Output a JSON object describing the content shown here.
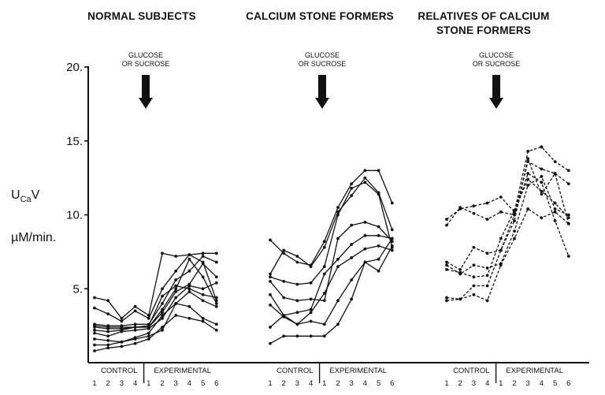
{
  "chart_data": {
    "type": "line",
    "ylabel_main": "U",
    "ylabel_sub": "Ca",
    "ylabel_suffix": "V",
    "ylabel_units": "µM/min.",
    "ylim": [
      0,
      20
    ],
    "yticks": [
      {
        "value": 5,
        "label": "5."
      },
      {
        "value": 10,
        "label": "10."
      },
      {
        "value": 15,
        "label": "15."
      },
      {
        "value": 20,
        "label": "20."
      }
    ],
    "x_positions": [
      1,
      2,
      3,
      4,
      5,
      6,
      7,
      8,
      9,
      10
    ],
    "x_tick_labels": [
      "1",
      "2",
      "3",
      "4",
      "1",
      "2",
      "3",
      "4",
      "5",
      "6"
    ],
    "segment_labels": {
      "control": "CONTROL",
      "experimental": "EXPERIMENTAL"
    },
    "arrow_label_line1": "GLUCOSE",
    "arrow_label_line2": "OR SUCROSE",
    "panels": [
      {
        "title_lines": [
          "NORMAL SUBJECTS"
        ],
        "line_style": "solid",
        "series": [
          {
            "values": [
              4.4,
              4.2,
              3.0,
              3.8,
              3.2,
              7.4,
              7.2,
              7.3,
              6.8,
              4.2
            ]
          },
          {
            "values": [
              3.7,
              3.3,
              2.8,
              3.5,
              3.0,
              5.0,
              6.2,
              7.3,
              7.4,
              7.4
            ]
          },
          {
            "values": [
              2.6,
              2.5,
              2.5,
              2.6,
              2.6,
              4.0,
              5.6,
              6.2,
              7.2,
              6.8
            ]
          },
          {
            "values": [
              2.5,
              2.4,
              2.4,
              2.4,
              2.4,
              3.4,
              4.8,
              5.3,
              6.7,
              5.8
            ]
          },
          {
            "values": [
              2.4,
              2.3,
              2.3,
              2.4,
              2.4,
              3.6,
              5.0,
              7.0,
              5.8,
              4.0
            ]
          },
          {
            "values": [
              2.2,
              2.1,
              2.2,
              2.4,
              2.5,
              4.5,
              5.2,
              5.0,
              4.6,
              4.4
            ]
          },
          {
            "values": [
              2.0,
              1.8,
              2.1,
              2.2,
              2.3,
              3.0,
              4.4,
              5.2,
              5.0,
              5.4
            ]
          },
          {
            "values": [
              1.6,
              1.5,
              1.4,
              1.7,
              2.0,
              3.2,
              4.0,
              4.8,
              4.2,
              3.8
            ]
          },
          {
            "values": [
              1.2,
              1.2,
              1.4,
              1.6,
              1.8,
              2.2,
              4.0,
              3.8,
              3.0,
              2.6
            ]
          },
          {
            "values": [
              0.8,
              1.0,
              1.1,
              1.3,
              1.6,
              2.4,
              3.2,
              3.0,
              2.8,
              2.2
            ]
          }
        ]
      },
      {
        "title_lines": [
          "CALCIUM STONE FORMERS"
        ],
        "line_style": "solid",
        "series": [
          {
            "values": [
              8.3,
              7.4,
              6.8,
              6.6,
              8.2,
              10.5,
              12.1,
              13.0,
              13.0,
              10.8
            ]
          },
          {
            "values": [
              6.0,
              7.6,
              7.2,
              6.5,
              7.8,
              10.2,
              11.3,
              12.5,
              11.5,
              9.0
            ]
          },
          {
            "values": [
              5.8,
              5.5,
              5.3,
              5.4,
              6.5,
              10.0,
              11.8,
              12.2,
              11.4,
              7.8
            ]
          },
          {
            "values": [
              5.5,
              4.4,
              4.2,
              4.3,
              4.2,
              8.4,
              9.3,
              9.5,
              9.2,
              8.2
            ]
          },
          {
            "values": [
              4.6,
              3.2,
              3.4,
              3.6,
              6.0,
              7.0,
              8.0,
              8.6,
              8.6,
              8.4
            ]
          },
          {
            "values": [
              3.9,
              3.1,
              2.6,
              3.4,
              4.7,
              6.5,
              7.1,
              7.7,
              7.9,
              7.6
            ]
          },
          {
            "values": [
              2.4,
              3.2,
              2.6,
              2.8,
              2.6,
              4.2,
              5.6,
              6.8,
              7.0,
              8.4
            ]
          },
          {
            "values": [
              1.3,
              1.8,
              1.8,
              1.8,
              1.8,
              2.6,
              4.3,
              6.8,
              6.2,
              7.9
            ]
          }
        ]
      },
      {
        "title_lines": [
          "RELATIVES OF CALCIUM",
          "STONE FORMERS"
        ],
        "line_style": "dashed",
        "series": [
          {
            "values": [
              9.7,
              10.4,
              10.6,
              10.8,
              11.2,
              10.2,
              14.3,
              14.6,
              13.6,
              13.0
            ]
          },
          {
            "values": [
              9.3,
              10.5,
              10.1,
              9.7,
              10.2,
              10.0,
              13.6,
              13.1,
              12.8,
              9.4
            ]
          },
          {
            "values": [
              6.8,
              6.3,
              7.8,
              7.4,
              7.6,
              9.6,
              13.8,
              11.4,
              12.8,
              12.1
            ]
          },
          {
            "values": [
              6.6,
              6.0,
              6.6,
              6.4,
              6.7,
              8.9,
              12.0,
              12.6,
              10.4,
              10.0
            ]
          },
          {
            "values": [
              6.3,
              6.1,
              5.8,
              5.9,
              8.4,
              10.3,
              12.4,
              11.6,
              10.8,
              9.8
            ]
          },
          {
            "values": [
              4.4,
              4.3,
              5.2,
              5.2,
              7.6,
              10.0,
              12.8,
              12.2,
              9.6,
              7.2
            ]
          },
          {
            "values": [
              4.2,
              4.3,
              4.6,
              4.2,
              6.6,
              8.4,
              10.4,
              9.8,
              10.2,
              9.4
            ]
          }
        ]
      }
    ]
  }
}
